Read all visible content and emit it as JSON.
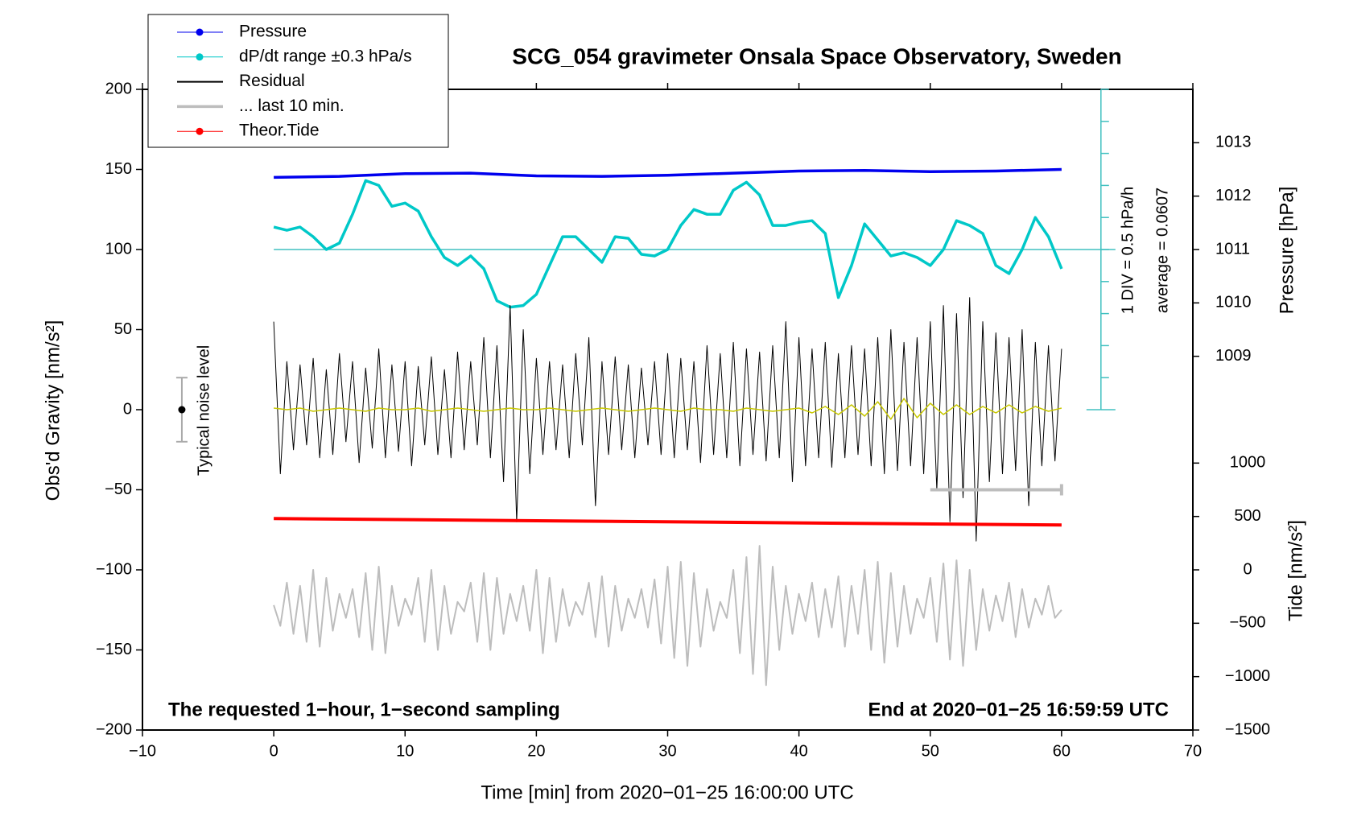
{
  "chart_data": {
    "type": "line",
    "title": "SCG_054 gravimeter Onsala Space Observatory, Sweden",
    "xlabel": "Time [min] from 2020−01−25 16:00:00 UTC",
    "ylabel": "Obs'd Gravity [nm/s²]",
    "y2label": "Pressure [hPa]",
    "y3label": "Tide [nm/s²]",
    "annotations": {
      "left_note": "The requested 1−hour, 1−second sampling",
      "right_note": "End at 2020−01−25 16:59:59 UTC",
      "div_note": "1 DIV = 0.5 hPa/h",
      "average_note": "average = 0.0607",
      "noise_note": "Typical noise level"
    },
    "legend": "top-left",
    "xlim": [
      -10,
      70
    ],
    "xticks": [
      {
        "value": -10,
        "label": "−10"
      },
      0,
      10,
      20,
      30,
      40,
      50,
      60,
      70
    ],
    "ylim": [
      -200,
      200
    ],
    "yticks": [
      200,
      150,
      100,
      50,
      0,
      {
        "value": -50,
        "label": "−50"
      },
      {
        "value": -100,
        "label": "−100"
      },
      {
        "value": -150,
        "label": "−150"
      },
      {
        "value": -200,
        "label": "−200"
      }
    ],
    "y2lim": [
      1002,
      1014
    ],
    "y2ticks": [
      1013,
      1012,
      1011,
      1010,
      1009
    ],
    "y3lim": [
      -1500,
      4500
    ],
    "y3ticks": [
      1000,
      500,
      0,
      {
        "value": -500,
        "label": "−500"
      },
      {
        "value": -1000,
        "label": "−1000"
      },
      {
        "value": -1500,
        "label": "−1500"
      }
    ],
    "dpdt_ticks": [
      0,
      20,
      40,
      60,
      80,
      100,
      120,
      140,
      160,
      180,
      200
    ],
    "dpdt_reference": 100,
    "last10_span": {
      "x": [
        50,
        60
      ],
      "value": -50
    },
    "noise_level": {
      "x": -7,
      "value": 0,
      "error": 20
    },
    "series": [
      {
        "name": "Pressure",
        "color": "#0000ee",
        "axis": "y2",
        "marker": true,
        "x": [
          0,
          5,
          10,
          15,
          20,
          25,
          30,
          35,
          40,
          45,
          50,
          55,
          60
        ],
        "values": [
          1012.35,
          1012.37,
          1012.42,
          1012.43,
          1012.38,
          1012.37,
          1012.39,
          1012.43,
          1012.47,
          1012.48,
          1012.46,
          1012.47,
          1012.5
        ]
      },
      {
        "name": "dP/dt range ±0.3 hPa/s",
        "color": "#00c8c8",
        "marker": true,
        "x": [
          0,
          1,
          2,
          3,
          4,
          5,
          6,
          7,
          8,
          9,
          10,
          11,
          12,
          13,
          14,
          15,
          16,
          17,
          18,
          19,
          20,
          21,
          22,
          23,
          24,
          25,
          26,
          27,
          28,
          29,
          30,
          31,
          32,
          33,
          34,
          35,
          36,
          37,
          38,
          39,
          40,
          41,
          42,
          43,
          44,
          45,
          46,
          47,
          48,
          49,
          50,
          51,
          52,
          53,
          54,
          55,
          56,
          57,
          58,
          59,
          60
        ],
        "values": [
          114,
          112,
          114,
          108,
          100,
          104,
          122,
          143,
          140,
          127,
          129,
          124,
          108,
          95,
          90,
          96,
          88,
          68,
          64,
          65,
          72,
          90,
          108,
          108,
          100,
          92,
          108,
          107,
          97,
          96,
          100,
          115,
          125,
          122,
          122,
          137,
          142,
          134,
          115,
          115,
          117,
          118,
          110,
          70,
          90,
          116,
          106,
          96,
          98,
          95,
          90,
          100,
          118,
          115,
          110,
          90,
          85,
          100,
          120,
          108,
          88
        ]
      },
      {
        "name": "Residual",
        "color": "#000000",
        "x": [
          0,
          0.5,
          1,
          1.5,
          2,
          2.5,
          3,
          3.5,
          4,
          4.5,
          5,
          5.5,
          6,
          6.5,
          7,
          7.5,
          8,
          8.5,
          9,
          9.5,
          10,
          10.5,
          11,
          11.5,
          12,
          12.5,
          13,
          13.5,
          14,
          14.5,
          15,
          15.5,
          16,
          16.5,
          17,
          17.5,
          18,
          18.5,
          19,
          19.5,
          20,
          20.5,
          21,
          21.5,
          22,
          22.5,
          23,
          23.5,
          24,
          24.5,
          25,
          25.5,
          26,
          26.5,
          27,
          27.5,
          28,
          28.5,
          29,
          29.5,
          30,
          30.5,
          31,
          31.5,
          32,
          32.5,
          33,
          33.5,
          34,
          34.5,
          35,
          35.5,
          36,
          36.5,
          37,
          37.5,
          38,
          38.5,
          39,
          39.5,
          40,
          40.5,
          41,
          41.5,
          42,
          42.5,
          43,
          43.5,
          44,
          44.5,
          45,
          45.5,
          46,
          46.5,
          47,
          47.5,
          48,
          48.5,
          49,
          49.5,
          50,
          50.5,
          51,
          51.5,
          52,
          52.5,
          53,
          53.5,
          54,
          54.5,
          55,
          55.5,
          56,
          56.5,
          57,
          57.5,
          58,
          58.5,
          59,
          59.5,
          60
        ],
        "values": [
          55,
          -40,
          30,
          -25,
          28,
          -22,
          32,
          -30,
          25,
          -28,
          35,
          -20,
          30,
          -33,
          26,
          -24,
          38,
          -30,
          28,
          -26,
          30,
          -35,
          27,
          -22,
          33,
          -28,
          25,
          -30,
          36,
          -25,
          30,
          -22,
          45,
          -30,
          40,
          -45,
          65,
          -70,
          50,
          -40,
          32,
          -28,
          30,
          -25,
          28,
          -30,
          35,
          -22,
          45,
          -60,
          30,
          -28,
          33,
          -25,
          28,
          -30,
          26,
          -22,
          30,
          -28,
          35,
          -30,
          32,
          -25,
          30,
          -33,
          40,
          -28,
          35,
          -30,
          42,
          -35,
          38,
          -28,
          36,
          -32,
          40,
          -30,
          55,
          -45,
          45,
          -35,
          38,
          -30,
          42,
          -36,
          35,
          -30,
          40,
          -28,
          38,
          -35,
          45,
          -40,
          50,
          -38,
          42,
          -35,
          45,
          -40,
          55,
          -50,
          65,
          -70,
          60,
          -55,
          70,
          -82,
          55,
          -45,
          48,
          -40,
          45,
          -38,
          50,
          -60,
          42,
          -35,
          40,
          -32,
          38
        ]
      },
      {
        "name": "... last 10 min.",
        "color": "#bdbdbd",
        "x": [
          0,
          0.5,
          1,
          1.5,
          2,
          2.5,
          3,
          3.5,
          4,
          4.5,
          5,
          5.5,
          6,
          6.5,
          7,
          7.5,
          8,
          8.5,
          9,
          9.5,
          10,
          10.5,
          11,
          11.5,
          12,
          12.5,
          13,
          13.5,
          14,
          14.5,
          15,
          15.5,
          16,
          16.5,
          17,
          17.5,
          18,
          18.5,
          19,
          19.5,
          20,
          20.5,
          21,
          21.5,
          22,
          22.5,
          23,
          23.5,
          24,
          24.5,
          25,
          25.5,
          26,
          26.5,
          27,
          27.5,
          28,
          28.5,
          29,
          29.5,
          30,
          30.5,
          31,
          31.5,
          32,
          32.5,
          33,
          33.5,
          34,
          34.5,
          35,
          35.5,
          36,
          36.5,
          37,
          37.5,
          38,
          38.5,
          39,
          39.5,
          40,
          40.5,
          41,
          41.5,
          42,
          42.5,
          43,
          43.5,
          44,
          44.5,
          45,
          45.5,
          46,
          46.5,
          47,
          47.5,
          48,
          48.5,
          49,
          49.5,
          50,
          50.5,
          51,
          51.5,
          52,
          52.5,
          53,
          53.5,
          54,
          54.5,
          55,
          55.5,
          56,
          56.5,
          57,
          57.5,
          58,
          58.5,
          59,
          59.5,
          60
        ],
        "values": [
          -122,
          -135,
          -108,
          -140,
          -110,
          -145,
          -100,
          -148,
          -105,
          -138,
          -115,
          -130,
          -112,
          -142,
          -102,
          -150,
          -98,
          -152,
          -110,
          -135,
          -118,
          -128,
          -105,
          -145,
          -100,
          -150,
          -110,
          -140,
          -120,
          -126,
          -108,
          -145,
          -102,
          -150,
          -105,
          -140,
          -115,
          -132,
          -110,
          -138,
          -100,
          -152,
          -105,
          -145,
          -112,
          -135,
          -120,
          -128,
          -108,
          -142,
          -104,
          -148,
          -110,
          -138,
          -118,
          -130,
          -112,
          -136,
          -106,
          -146,
          -98,
          -155,
          -95,
          -160,
          -102,
          -148,
          -112,
          -138,
          -120,
          -130,
          -100,
          -152,
          -92,
          -165,
          -85,
          -172,
          -98,
          -150,
          -110,
          -140,
          -115,
          -132,
          -108,
          -142,
          -112,
          -136,
          -104,
          -148,
          -110,
          -140,
          -100,
          -150,
          -95,
          -158,
          -102,
          -148,
          -110,
          -140,
          -118,
          -130,
          -105,
          -145,
          -96,
          -156,
          -94,
          -160,
          -100,
          -150,
          -112,
          -138,
          -116,
          -132,
          -108,
          -142,
          -112,
          -136,
          -118,
          -128,
          -110,
          -130,
          -125
        ]
      },
      {
        "name": "Theor.Tide",
        "color": "#ff0000",
        "axis": "y3",
        "marker": true,
        "x": [
          0,
          60
        ],
        "values": [
          480,
          420
        ]
      },
      {
        "color": "#c8c800",
        "x": [
          0,
          1,
          2,
          3,
          4,
          5,
          6,
          7,
          8,
          9,
          10,
          11,
          12,
          13,
          14,
          15,
          16,
          17,
          18,
          19,
          20,
          21,
          22,
          23,
          24,
          25,
          26,
          27,
          28,
          29,
          30,
          31,
          32,
          33,
          34,
          35,
          36,
          37,
          38,
          39,
          40,
          41,
          42,
          43,
          44,
          45,
          46,
          47,
          48,
          49,
          50,
          51,
          52,
          53,
          54,
          55,
          56,
          57,
          58,
          59,
          60
        ],
        "values": [
          1,
          0,
          1,
          -1,
          0,
          1,
          0,
          -1,
          1,
          0,
          0,
          1,
          -1,
          0,
          1,
          0,
          -1,
          0,
          1,
          0,
          0,
          1,
          0,
          -1,
          0,
          1,
          0,
          -1,
          0,
          1,
          0,
          -1,
          1,
          0,
          0,
          -1,
          1,
          0,
          -1,
          0,
          1,
          -2,
          2,
          -3,
          3,
          -4,
          5,
          -6,
          7,
          -5,
          4,
          -3,
          3,
          -3,
          2,
          -2,
          3,
          -2,
          2,
          -1,
          1
        ]
      }
    ]
  }
}
